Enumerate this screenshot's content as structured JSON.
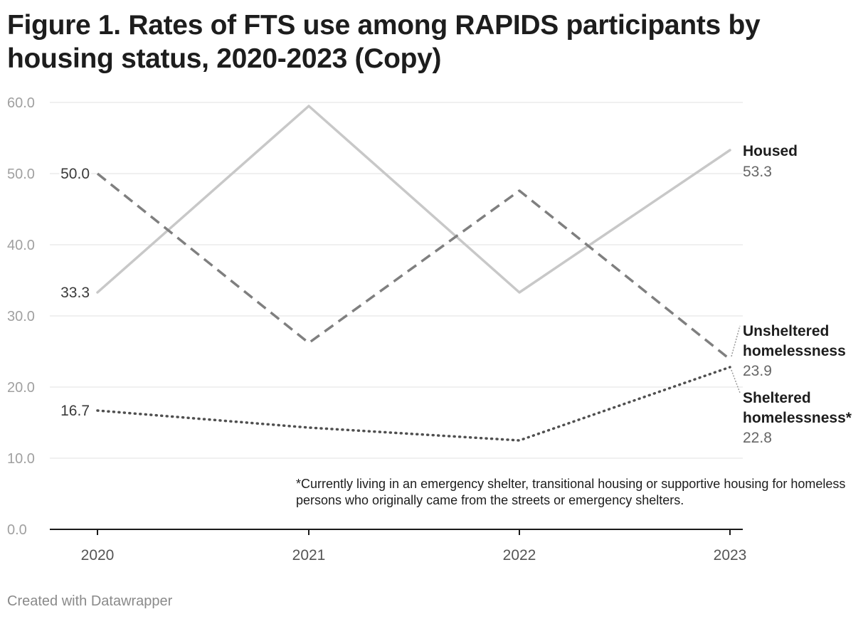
{
  "title": "Figure 1. Rates of FTS use among RAPIDS participants by housing status, 2020-2023 (Copy)",
  "footnote": "*Currently living in an emergency shelter, transitional housing or supportive housing for homeless persons who originally came from the streets or emergency shelters.",
  "credit": "Created with Datawrapper",
  "colors": {
    "housed": "#c8c8c8",
    "unsheltered": "#7f7f7f",
    "sheltered": "#4f4f4f",
    "grid": "#e0e0e0",
    "axis": "#1a1a1a",
    "tick_label": "#a0a0a0"
  },
  "chart_data": {
    "type": "line",
    "x": [
      "2020",
      "2021",
      "2022",
      "2023"
    ],
    "ylim": [
      0,
      60
    ],
    "y_ticks": [
      "0.0",
      "10.0",
      "20.0",
      "30.0",
      "40.0",
      "50.0",
      "60.0"
    ],
    "grid": true,
    "series": [
      {
        "id": "housed",
        "name": "Housed",
        "style": "solid",
        "values": [
          33.3,
          59.5,
          33.3,
          53.3
        ],
        "start_label": "33.3",
        "end_label": "53.3"
      },
      {
        "id": "unsheltered",
        "name": "Unsheltered homelessness",
        "style": "dashed",
        "values": [
          50.0,
          26.2,
          47.6,
          23.9
        ],
        "start_label": "50.0",
        "end_label": "23.9"
      },
      {
        "id": "sheltered",
        "name": "Sheltered homelessness*",
        "style": "dotted",
        "values": [
          16.7,
          14.3,
          12.5,
          22.8
        ],
        "start_label": "16.7",
        "end_label": "22.8"
      }
    ]
  }
}
